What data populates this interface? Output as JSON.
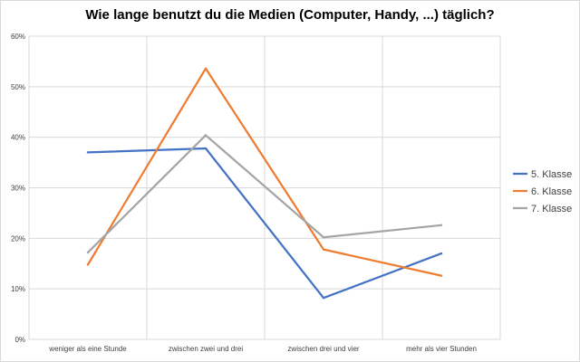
{
  "chart_data": {
    "type": "line",
    "title": "Wie lange benutzt du die Medien (Computer, Handy, ...) täglich?",
    "categories": [
      "weniger als eine Stunde",
      "zwischen zwei und drei",
      "zwischen drei und vier",
      "mehr als vier Stunden"
    ],
    "series": [
      {
        "name": "5. Klasse",
        "values": [
          37.0,
          37.8,
          8.2,
          17.0
        ],
        "color": "#4472c4"
      },
      {
        "name": "6. Klasse",
        "values": [
          14.8,
          53.6,
          17.8,
          12.6
        ],
        "color": "#ed7d31"
      },
      {
        "name": "7. Klasse",
        "values": [
          17.2,
          40.4,
          20.2,
          22.6
        ],
        "color": "#a5a5a5"
      }
    ],
    "ylim": [
      0,
      60
    ],
    "yticks": [
      "0%",
      "10%",
      "20%",
      "30%",
      "40%",
      "50%",
      "60%"
    ],
    "grid": true,
    "legend_position": "right"
  }
}
